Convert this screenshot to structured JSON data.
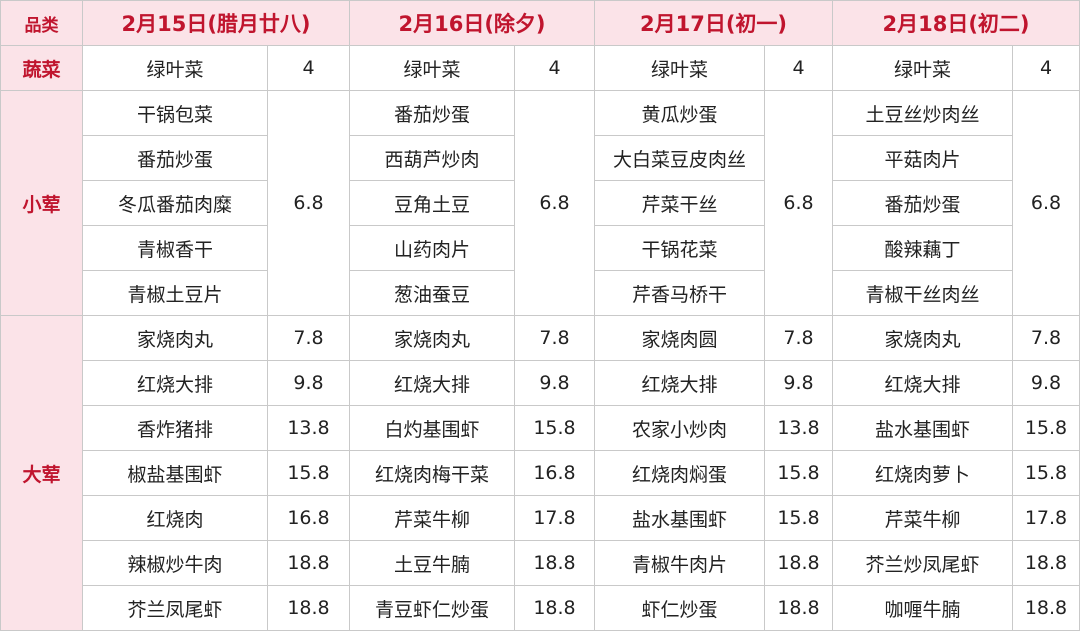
{
  "header": {
    "category": "品类",
    "days": [
      "2月15日(腊月廿八)",
      "2月16日(除夕)",
      "2月17日(初一)",
      "2月18日(初二)"
    ]
  },
  "vegetable": {
    "label": "蔬菜",
    "days": [
      {
        "name": "绿叶菜",
        "price": "4"
      },
      {
        "name": "绿叶菜",
        "price": "4"
      },
      {
        "name": "绿叶菜",
        "price": "4"
      },
      {
        "name": "绿叶菜",
        "price": "4"
      }
    ]
  },
  "small_meat": {
    "label": "小荤",
    "days": [
      {
        "items": [
          "干锅包菜",
          "番茄炒蛋",
          "冬瓜番茄肉糜",
          "青椒香干",
          "青椒土豆片"
        ],
        "price": "6.8"
      },
      {
        "items": [
          "番茄炒蛋",
          "西葫芦炒肉",
          "豆角土豆",
          "山药肉片",
          "葱油蚕豆"
        ],
        "price": "6.8"
      },
      {
        "items": [
          "黄瓜炒蛋",
          "大白菜豆皮肉丝",
          "芹菜干丝",
          "干锅花菜",
          "芹香马桥干"
        ],
        "price": "6.8"
      },
      {
        "items": [
          "土豆丝炒肉丝",
          "平菇肉片",
          "番茄炒蛋",
          "酸辣藕丁",
          "青椒干丝肉丝"
        ],
        "price": "6.8"
      }
    ]
  },
  "large_meat": {
    "label": "大荤",
    "days": [
      [
        {
          "name": "家烧肉丸",
          "price": "7.8"
        },
        {
          "name": "红烧大排",
          "price": "9.8"
        },
        {
          "name": "香炸猪排",
          "price": "13.8"
        },
        {
          "name": "椒盐基围虾",
          "price": "15.8"
        },
        {
          "name": "红烧肉",
          "price": "16.8"
        },
        {
          "name": "辣椒炒牛肉",
          "price": "18.8"
        },
        {
          "name": "芥兰凤尾虾",
          "price": "18.8"
        }
      ],
      [
        {
          "name": "家烧肉丸",
          "price": "7.8"
        },
        {
          "name": "红烧大排",
          "price": "9.8"
        },
        {
          "name": "白灼基围虾",
          "price": "15.8"
        },
        {
          "name": "红烧肉梅干菜",
          "price": "16.8"
        },
        {
          "name": "芹菜牛柳",
          "price": "17.8"
        },
        {
          "name": "土豆牛腩",
          "price": "18.8"
        },
        {
          "name": "青豆虾仁炒蛋",
          "price": "18.8"
        }
      ],
      [
        {
          "name": "家烧肉圆",
          "price": "7.8"
        },
        {
          "name": "红烧大排",
          "price": "9.8"
        },
        {
          "name": "农家小炒肉",
          "price": "13.8"
        },
        {
          "name": "红烧肉焖蛋",
          "price": "15.8"
        },
        {
          "name": "盐水基围虾",
          "price": "15.8"
        },
        {
          "name": "青椒牛肉片",
          "price": "18.8"
        },
        {
          "name": "虾仁炒蛋",
          "price": "18.8"
        }
      ],
      [
        {
          "name": "家烧肉丸",
          "price": "7.8"
        },
        {
          "name": "红烧大排",
          "price": "9.8"
        },
        {
          "name": "盐水基围虾",
          "price": "15.8"
        },
        {
          "name": "红烧肉萝卜",
          "price": "15.8"
        },
        {
          "name": "芹菜牛柳",
          "price": "17.8"
        },
        {
          "name": "芥兰炒凤尾虾",
          "price": "18.8"
        },
        {
          "name": "咖喱牛腩",
          "price": "18.8"
        }
      ]
    ]
  },
  "colors": {
    "header_bg": "#fbe3e8",
    "header_text": "#c0152e",
    "border": "#c9c9c9"
  }
}
